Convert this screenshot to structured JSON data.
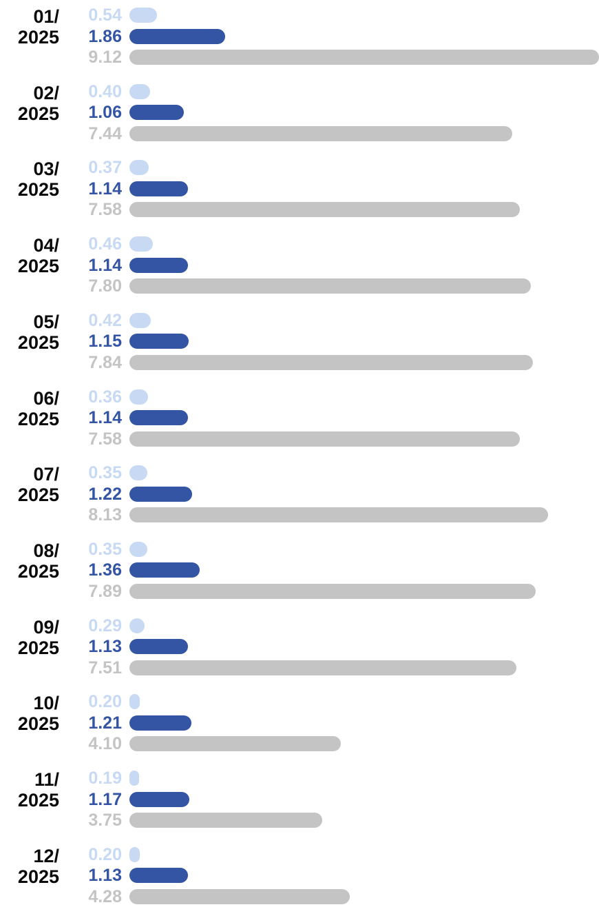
{
  "chart_data": {
    "type": "bar",
    "orientation": "horizontal",
    "categories": [
      "01/\n2025",
      "02/\n2025",
      "03/\n2025",
      "04/\n2025",
      "05/\n2025",
      "06/\n2025",
      "07/\n2025",
      "08/\n2025",
      "09/\n2025",
      "10/\n2025",
      "11/\n2025",
      "12/\n2025"
    ],
    "series": [
      {
        "color": "#c8daf3",
        "values": [
          0.54,
          0.4,
          0.37,
          0.46,
          0.42,
          0.36,
          0.35,
          0.35,
          0.29,
          0.2,
          0.19,
          0.2
        ],
        "labels": [
          "0.54",
          "0.40",
          "0.37",
          "0.46",
          "0.42",
          "0.36",
          "0.35",
          "0.35",
          "0.29",
          "0.20",
          "0.19",
          "0.20"
        ]
      },
      {
        "color": "#3454a4",
        "values": [
          1.86,
          1.06,
          1.14,
          1.14,
          1.15,
          1.14,
          1.22,
          1.36,
          1.13,
          1.21,
          1.17,
          1.13
        ],
        "labels": [
          "1.86",
          "1.06",
          "1.14",
          "1.14",
          "1.15",
          "1.14",
          "1.22",
          "1.36",
          "1.13",
          "1.21",
          "1.17",
          "1.13"
        ]
      },
      {
        "color": "#c4c4c4",
        "values": [
          9.12,
          7.44,
          7.58,
          7.8,
          7.84,
          7.58,
          8.13,
          7.89,
          7.51,
          4.1,
          3.75,
          4.28
        ],
        "labels": [
          "9.12",
          "7.44",
          "7.58",
          "7.80",
          "7.84",
          "7.58",
          "8.13",
          "7.89",
          "7.51",
          "4.10",
          "3.75",
          "4.28"
        ]
      }
    ],
    "xlim": [
      0,
      9.12
    ],
    "grid": false,
    "legend": "none",
    "title": "",
    "xlabel": "",
    "ylabel": ""
  }
}
